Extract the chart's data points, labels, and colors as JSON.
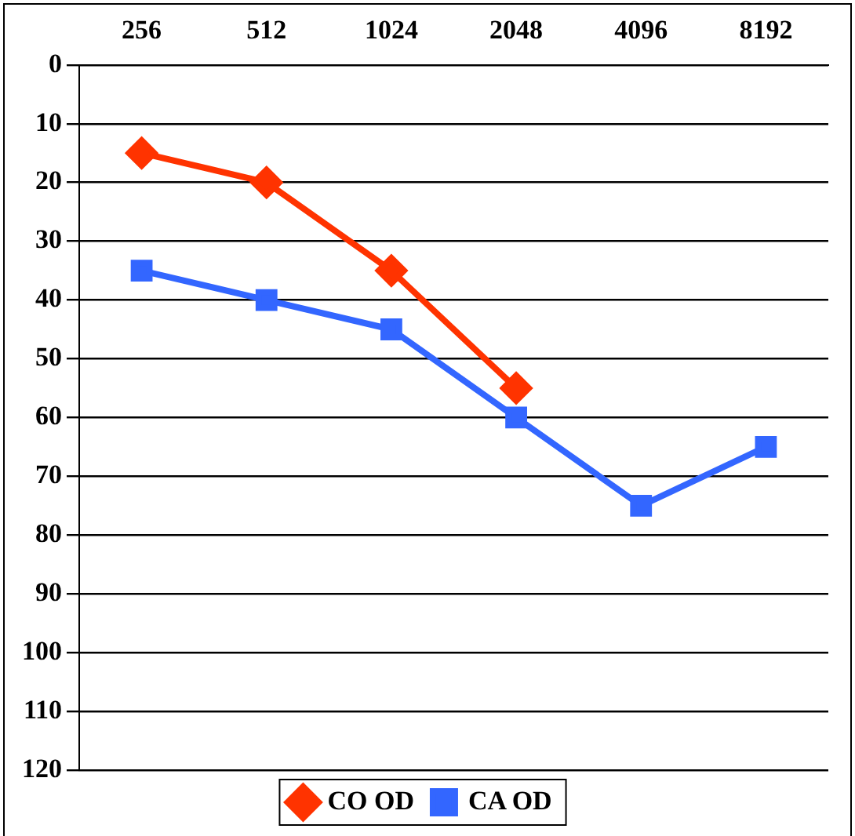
{
  "chart_data": {
    "type": "line",
    "categories": [
      "256",
      "512",
      "1024",
      "2048",
      "4096",
      "8192"
    ],
    "series": [
      {
        "name": "CO OD",
        "color": "#ff3300",
        "marker": "diamond",
        "values": [
          15,
          20,
          35,
          55,
          null,
          null
        ]
      },
      {
        "name": "CA OD",
        "color": "#3366ff",
        "marker": "square",
        "values": [
          35,
          40,
          45,
          60,
          75,
          65
        ]
      }
    ],
    "ylim": [
      120,
      0
    ],
    "yticks": [
      0,
      10,
      20,
      30,
      40,
      50,
      60,
      70,
      80,
      90,
      100,
      110,
      120
    ],
    "grid": "y",
    "legend": "bottom",
    "line_style": "solid"
  }
}
